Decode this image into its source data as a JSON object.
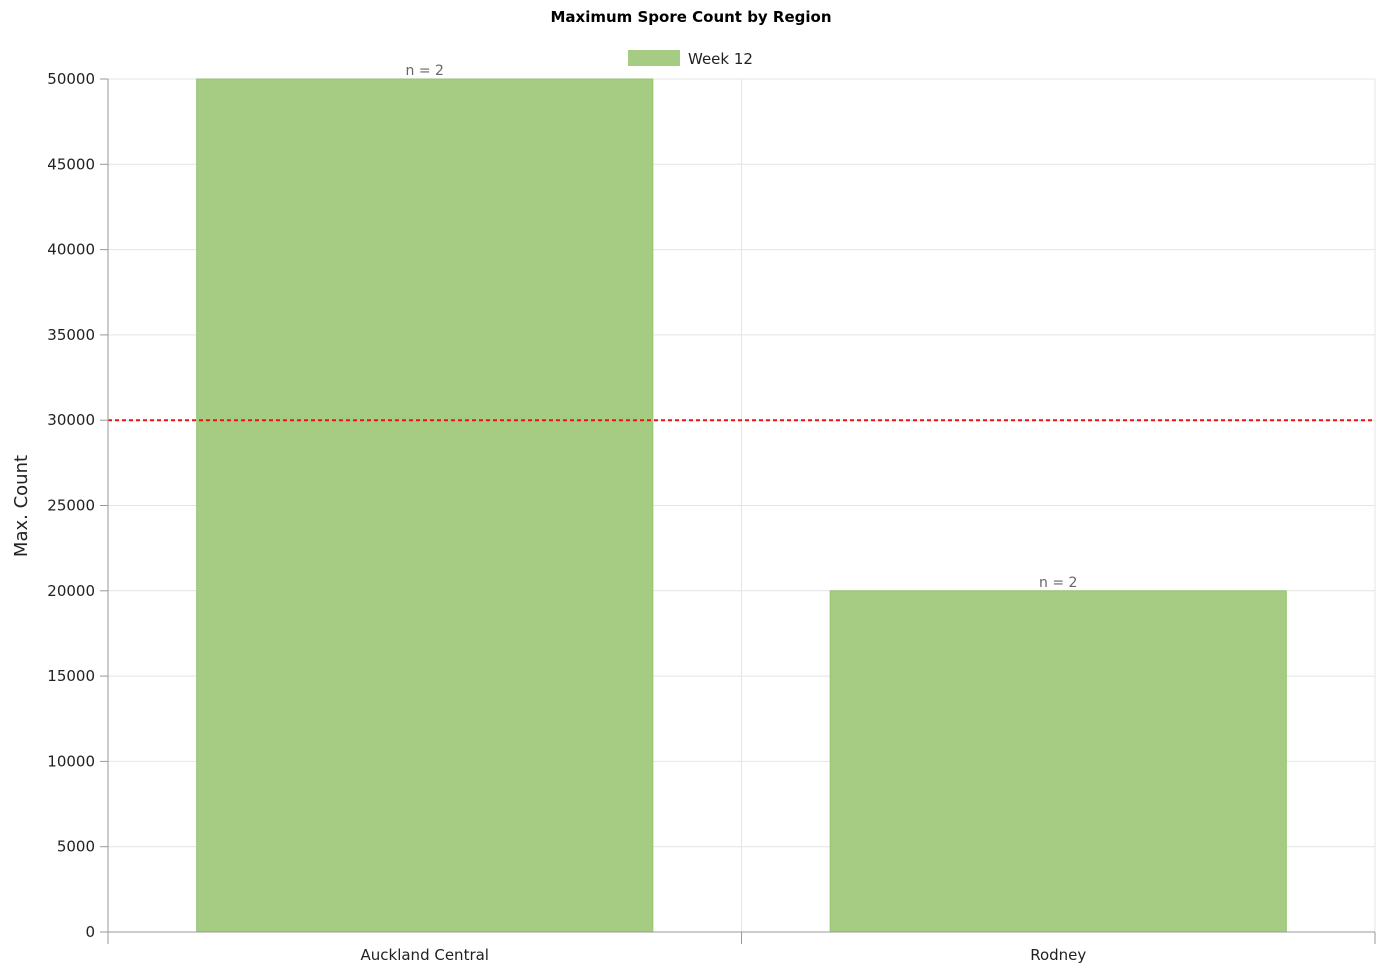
{
  "chart_data": {
    "type": "bar",
    "title": "Maximum Spore Count by Region",
    "xlabel": "",
    "ylabel": "Max. Count",
    "categories": [
      "Auckland Central",
      "Rodney"
    ],
    "series": [
      {
        "name": "Week 12",
        "values": [
          50000,
          20000
        ],
        "color": "#a5cc82"
      }
    ],
    "data_labels": [
      "n = 2",
      "n = 2"
    ],
    "ylim": [
      0,
      50000
    ],
    "yticks": [
      0,
      5000,
      10000,
      15000,
      20000,
      25000,
      30000,
      35000,
      40000,
      45000,
      50000
    ],
    "threshold": {
      "value": 30000,
      "color": "#ee1111",
      "style": "dashed"
    },
    "grid": true,
    "legend_position": "top-center"
  }
}
